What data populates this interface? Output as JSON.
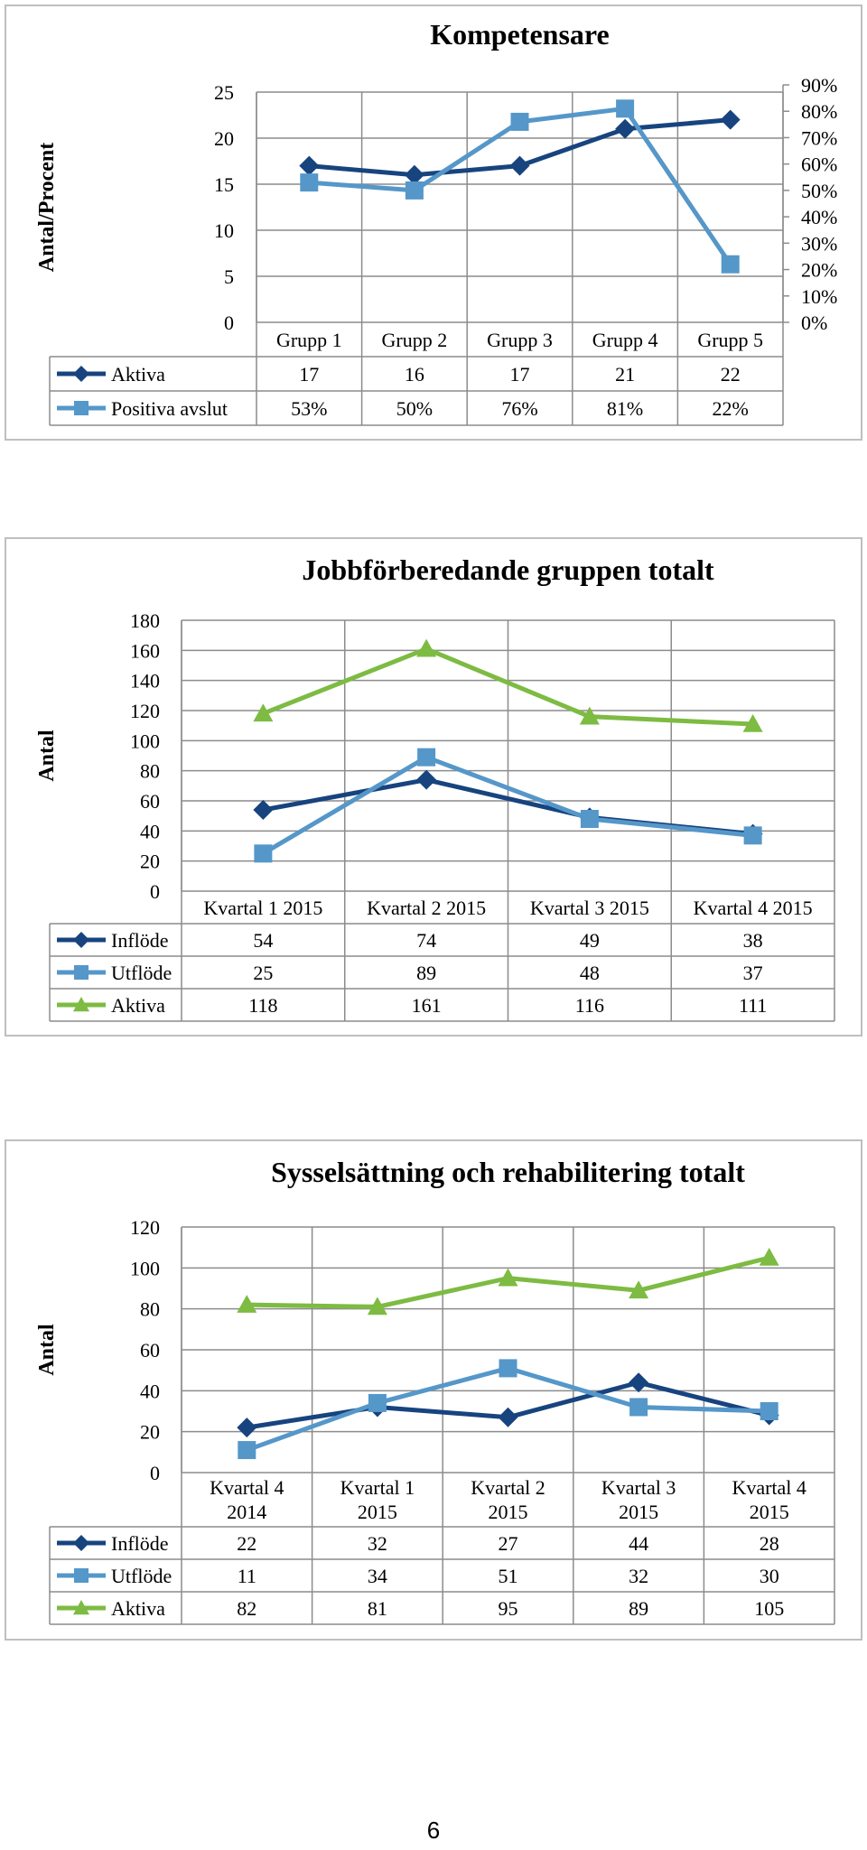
{
  "page_number": "6",
  "chart_data": [
    {
      "type": "line",
      "title": "Kompetensare",
      "ylabel": "Antal/Procent",
      "categories": [
        "Grupp 1",
        "Grupp 2",
        "Grupp 3",
        "Grupp 4",
        "Grupp 5"
      ],
      "ylim": [
        0,
        25
      ],
      "yticks": [
        "0",
        "5",
        "10",
        "15",
        "20",
        "25"
      ],
      "y2lim": [
        0,
        0.9
      ],
      "y2ticks": [
        "0%",
        "10%",
        "20%",
        "30%",
        "40%",
        "50%",
        "60%",
        "70%",
        "80%",
        "90%"
      ],
      "grid": true,
      "series": [
        {
          "name": "Aktiva",
          "color": "#17447f",
          "marker": "diamond",
          "axis": "left",
          "values": [
            17,
            16,
            17,
            21,
            22
          ],
          "labels": [
            "17",
            "16",
            "17",
            "21",
            "22"
          ]
        },
        {
          "name": "Positiva avslut",
          "color": "#5597c9",
          "marker": "square",
          "axis": "right",
          "values": [
            0.53,
            0.5,
            0.76,
            0.81,
            0.22
          ],
          "labels": [
            "53%",
            "50%",
            "76%",
            "81%",
            "22%"
          ]
        }
      ]
    },
    {
      "type": "line",
      "title": "Jobbförberedande gruppen totalt",
      "ylabel": "Antal",
      "categories": [
        "Kvartal 1 2015",
        "Kvartal 2 2015",
        "Kvartal 3 2015",
        "Kvartal 4 2015"
      ],
      "ylim": [
        0,
        180
      ],
      "yticks": [
        "0",
        "20",
        "40",
        "60",
        "80",
        "100",
        "120",
        "140",
        "160",
        "180"
      ],
      "grid": true,
      "series": [
        {
          "name": "Inflöde",
          "color": "#17447f",
          "marker": "diamond",
          "values": [
            54,
            74,
            49,
            38
          ],
          "labels": [
            "54",
            "74",
            "49",
            "38"
          ]
        },
        {
          "name": "Utflöde",
          "color": "#5597c9",
          "marker": "square",
          "values": [
            25,
            89,
            48,
            37
          ],
          "labels": [
            "25",
            "89",
            "48",
            "37"
          ]
        },
        {
          "name": "Aktiva",
          "color": "#7dbb42",
          "marker": "triangle",
          "values": [
            118,
            161,
            116,
            111
          ],
          "labels": [
            "118",
            "161",
            "116",
            "111"
          ]
        }
      ]
    },
    {
      "type": "line",
      "title": "Sysselsättning och rehabilitering totalt",
      "ylabel": "Antal",
      "categories": [
        [
          "Kvartal 4",
          "2014"
        ],
        [
          "Kvartal 1",
          "2015"
        ],
        [
          "Kvartal 2",
          "2015"
        ],
        [
          "Kvartal 3",
          "2015"
        ],
        [
          "Kvartal 4",
          "2015"
        ]
      ],
      "ylim": [
        0,
        120
      ],
      "yticks": [
        "0",
        "20",
        "40",
        "60",
        "80",
        "100",
        "120"
      ],
      "grid": true,
      "series": [
        {
          "name": "Inflöde",
          "color": "#17447f",
          "marker": "diamond",
          "values": [
            22,
            32,
            27,
            44,
            28
          ],
          "labels": [
            "22",
            "32",
            "27",
            "44",
            "28"
          ]
        },
        {
          "name": "Utflöde",
          "color": "#5597c9",
          "marker": "square",
          "values": [
            11,
            34,
            51,
            32,
            30
          ],
          "labels": [
            "11",
            "34",
            "51",
            "32",
            "30"
          ]
        },
        {
          "name": "Aktiva",
          "color": "#7dbb42",
          "marker": "triangle",
          "values": [
            82,
            81,
            95,
            89,
            105
          ],
          "labels": [
            "82",
            "81",
            "95",
            "89",
            "105"
          ]
        }
      ]
    }
  ]
}
